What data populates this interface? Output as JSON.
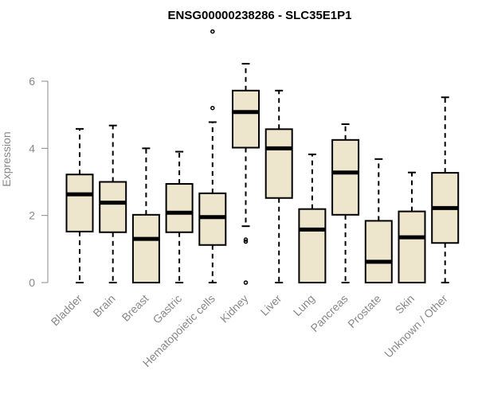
{
  "chart_data": {
    "type": "box",
    "title": "ENSG00000238286 - SLC35E1P1",
    "xlabel": "",
    "ylabel": "Expression",
    "ylim": [
      0,
      7.5
    ],
    "yticks": [
      0,
      2,
      4,
      6
    ],
    "colors": {
      "box_fill": "#ede6cc",
      "box_stroke": "#000000",
      "axis": "#888888"
    },
    "series": [
      {
        "category": "Bladder",
        "min": 0,
        "q1": 1.52,
        "median": 2.63,
        "q3": 3.22,
        "max": 4.58,
        "outliers": []
      },
      {
        "category": "Brain",
        "min": 0,
        "q1": 1.5,
        "median": 2.38,
        "q3": 3.0,
        "max": 4.68,
        "outliers": []
      },
      {
        "category": "Breast",
        "min": 0,
        "q1": 0,
        "median": 1.3,
        "q3": 2.02,
        "max": 4.0,
        "outliers": []
      },
      {
        "category": "Gastric",
        "min": 0,
        "q1": 1.5,
        "median": 2.08,
        "q3": 2.94,
        "max": 3.9,
        "outliers": []
      },
      {
        "category": "Hematopoietic cells",
        "min": 0,
        "q1": 1.12,
        "median": 1.95,
        "q3": 2.66,
        "max": 4.78,
        "outliers": [
          5.2,
          7.48
        ]
      },
      {
        "category": "Kidney",
        "min": 1.68,
        "q1": 4.02,
        "median": 5.08,
        "q3": 5.72,
        "max": 6.52,
        "outliers": [
          1.28,
          1.22,
          0.0
        ]
      },
      {
        "category": "Liver",
        "min": 0,
        "q1": 2.52,
        "median": 4.0,
        "q3": 4.57,
        "max": 5.72,
        "outliers": []
      },
      {
        "category": "Lung",
        "min": 0,
        "q1": 0,
        "median": 1.58,
        "q3": 2.19,
        "max": 3.82,
        "outliers": []
      },
      {
        "category": "Pancreas",
        "min": 0,
        "q1": 2.02,
        "median": 3.28,
        "q3": 4.25,
        "max": 4.72,
        "outliers": []
      },
      {
        "category": "Prostate",
        "min": 0,
        "q1": 0,
        "median": 0.62,
        "q3": 1.84,
        "max": 3.68,
        "outliers": []
      },
      {
        "category": "Skin",
        "min": 0,
        "q1": 0,
        "median": 1.35,
        "q3": 2.12,
        "max": 3.28,
        "outliers": []
      },
      {
        "category": "Unknown / Other",
        "min": 0,
        "q1": 1.18,
        "median": 2.22,
        "q3": 3.27,
        "max": 5.52,
        "outliers": []
      }
    ]
  }
}
